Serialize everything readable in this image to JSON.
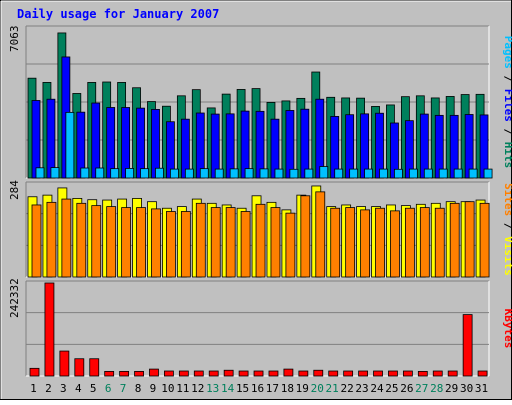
{
  "chart_data": {
    "type": "bar",
    "title": "Daily usage for January 2007",
    "categories": [
      "1",
      "2",
      "3",
      "4",
      "5",
      "6",
      "7",
      "8",
      "9",
      "10",
      "11",
      "12",
      "13",
      "14",
      "15",
      "16",
      "17",
      "18",
      "19",
      "20",
      "21",
      "22",
      "23",
      "24",
      "25",
      "26",
      "27",
      "28",
      "29",
      "30",
      "31"
    ],
    "weekend_days": [
      "6",
      "7",
      "13",
      "14",
      "20",
      "21",
      "27",
      "28"
    ],
    "panels": [
      {
        "id": "hits_files_pages",
        "ymax_label": "7063",
        "ylim": [
          0,
          7063
        ],
        "ylabel_parts": [
          "Pages",
          "Files",
          "Hits"
        ],
        "series": [
          {
            "name": "Hits",
            "color": "#00805c",
            "values": [
              4700,
              4500,
              6830,
              3980,
              4500,
              4520,
              4500,
              4250,
              3600,
              3380,
              3870,
              4160,
              3300,
              3950,
              4170,
              4210,
              3560,
              3630,
              3750,
              4990,
              3800,
              3770,
              3760,
              3370,
              3440,
              3830,
              3870,
              3770,
              3840,
              3930,
              3940
            ]
          },
          {
            "name": "Files",
            "color": "#0000ff",
            "values": [
              3650,
              3710,
              5700,
              3100,
              3530,
              3320,
              3320,
              3290,
              3230,
              2650,
              2770,
              3060,
              3010,
              3020,
              3150,
              3140,
              2770,
              3180,
              3240,
              3710,
              2900,
              2980,
              3020,
              3050,
              2590,
              2700,
              3010,
              2950,
              2950,
              2990,
              2970
            ]
          },
          {
            "name": "Pages",
            "color": "#00c0ff",
            "values": [
              480,
              490,
              3090,
              470,
              470,
              440,
              450,
              440,
              460,
              420,
              420,
              440,
              420,
              430,
              440,
              430,
              420,
              410,
              420,
              540,
              420,
              420,
              420,
              420,
              410,
              420,
              420,
              420,
              420,
              420,
              420
            ]
          }
        ]
      },
      {
        "id": "visits_sites",
        "ymax_label": "284",
        "ylim": [
          0,
          284
        ],
        "ylabel_parts": [
          "Sites",
          "Visits"
        ],
        "series": [
          {
            "name": "Visits",
            "color": "#ffff00",
            "values": [
              245,
              250,
              272,
              240,
              236,
              235,
              238,
              240,
              230,
              210,
              215,
              238,
              225,
              220,
              210,
              248,
              228,
              205,
              250,
              278,
              215,
              220,
              215,
              215,
              220,
              218,
              222,
              225,
              230,
              230,
              235
            ]
          },
          {
            "name": "Sites",
            "color": "#ff8000",
            "values": [
              220,
              228,
              238,
              225,
              218,
              215,
              212,
              212,
              208,
              200,
              200,
              225,
              212,
              212,
              200,
              222,
              212,
              195,
              248,
              260,
              210,
              212,
              205,
              210,
              202,
              210,
              212,
              210,
              225,
              230,
              225
            ]
          }
        ]
      },
      {
        "id": "kbytes",
        "ymax_label": "242332",
        "ylim": [
          0,
          242332
        ],
        "ylabel_parts": [
          "KBytes"
        ],
        "series": [
          {
            "name": "KBytes",
            "color": "#ff0000",
            "values": [
              20000,
              242332,
              65000,
              45000,
              45000,
              12000,
              12000,
              12000,
              18000,
              13000,
              13000,
              13000,
              13000,
              15000,
              13000,
              13000,
              13000,
              18000,
              13000,
              15000,
              13000,
              13000,
              13000,
              13000,
              13000,
              13000,
              12000,
              13000,
              13000,
              160000,
              13000
            ]
          }
        ]
      }
    ],
    "colors": {
      "background": "#c0c0c0",
      "plot": "#c0c0c0",
      "title": "#0000ff",
      "axis_text": "#000000",
      "weekend_text": "#00805c"
    }
  }
}
